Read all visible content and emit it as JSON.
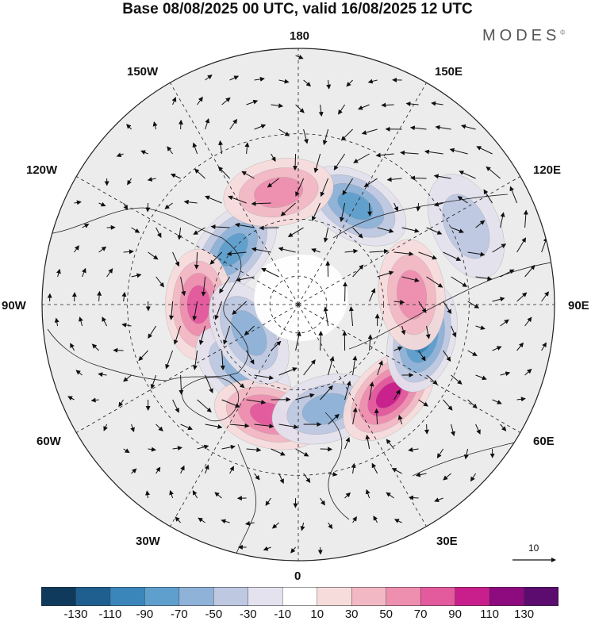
{
  "title": "Base 08/08/2025 00 UTC, valid 16/08/2025 12 UTC",
  "brand": "MODES",
  "brand_mark": "©",
  "longitude_labels": {
    "lon_180": "180",
    "lon_150e": "150E",
    "lon_120e": "120E",
    "lon_90e": "90E",
    "lon_60e": "60E",
    "lon_30e": "30E",
    "lon_0": "0",
    "lon_30w": "30W",
    "lon_60w": "60W",
    "lon_90w": "90W",
    "lon_120w": "120W",
    "lon_150w": "150W"
  },
  "wind_reference": {
    "value": "10"
  },
  "colorbar": {
    "colors": [
      "#0f3a5c",
      "#1f5f8f",
      "#3a86bb",
      "#5f9fcd",
      "#8fb2d8",
      "#bec8e1",
      "#e4e2ee",
      "#ffffff",
      "#f7dcdc",
      "#f2b9c4",
      "#ee8fb0",
      "#e35a9d",
      "#c91f8c",
      "#8d0b7e",
      "#5b0c6e"
    ],
    "tick_labels": [
      "-130",
      "-110",
      "-90",
      "-70",
      "-50",
      "-30",
      "-10",
      "10",
      "30",
      "50",
      "70",
      "90",
      "110",
      "130"
    ]
  },
  "anomaly_centers": [
    {
      "lon": -130,
      "lat": 60,
      "value": -75
    },
    {
      "lon": -90,
      "lat": 55,
      "value": 70
    },
    {
      "lon": -40,
      "lat": 60,
      "value": -50
    },
    {
      "lon": -15,
      "lat": 50,
      "value": 70
    },
    {
      "lon": 15,
      "lat": 52,
      "value": -60
    },
    {
      "lon": 45,
      "lat": 45,
      "value": 90
    },
    {
      "lon": 75,
      "lat": 45,
      "value": -95
    },
    {
      "lon": 95,
      "lat": 50,
      "value": 55
    },
    {
      "lon": 115,
      "lat": 25,
      "value": -45
    },
    {
      "lon": 150,
      "lat": 50,
      "value": -70
    },
    {
      "lon": -170,
      "lat": 50,
      "value": 60
    },
    {
      "lon": -60,
      "lat": 70,
      "value": -55
    }
  ]
}
